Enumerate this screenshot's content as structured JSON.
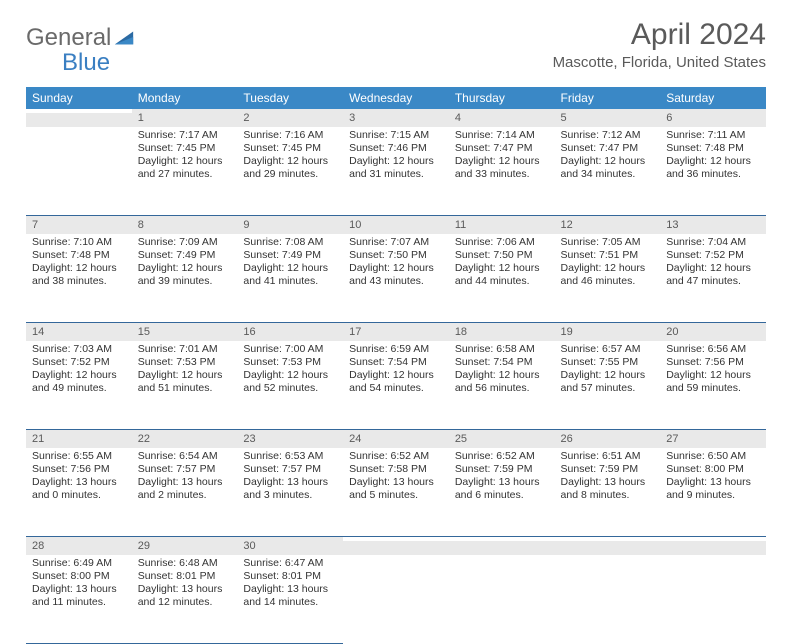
{
  "brand": {
    "part1": "General",
    "part2": "Blue"
  },
  "title": "April 2024",
  "location": "Mascotte, Florida, United States",
  "colors": {
    "header_bg": "#3a88c6",
    "header_text": "#ffffff",
    "row_divider": "#34679a",
    "daynum_bg": "#e9e9e9",
    "page_bg": "#ffffff",
    "text": "#333333",
    "muted_text": "#5a5a5a",
    "logo_blue": "#3a7fc2"
  },
  "weekdays": [
    "Sunday",
    "Monday",
    "Tuesday",
    "Wednesday",
    "Thursday",
    "Friday",
    "Saturday"
  ],
  "weeks": [
    [
      {
        "n": "",
        "sunrise": "",
        "sunset": "",
        "daylight": ""
      },
      {
        "n": "1",
        "sunrise": "Sunrise: 7:17 AM",
        "sunset": "Sunset: 7:45 PM",
        "daylight": "Daylight: 12 hours and 27 minutes."
      },
      {
        "n": "2",
        "sunrise": "Sunrise: 7:16 AM",
        "sunset": "Sunset: 7:45 PM",
        "daylight": "Daylight: 12 hours and 29 minutes."
      },
      {
        "n": "3",
        "sunrise": "Sunrise: 7:15 AM",
        "sunset": "Sunset: 7:46 PM",
        "daylight": "Daylight: 12 hours and 31 minutes."
      },
      {
        "n": "4",
        "sunrise": "Sunrise: 7:14 AM",
        "sunset": "Sunset: 7:47 PM",
        "daylight": "Daylight: 12 hours and 33 minutes."
      },
      {
        "n": "5",
        "sunrise": "Sunrise: 7:12 AM",
        "sunset": "Sunset: 7:47 PM",
        "daylight": "Daylight: 12 hours and 34 minutes."
      },
      {
        "n": "6",
        "sunrise": "Sunrise: 7:11 AM",
        "sunset": "Sunset: 7:48 PM",
        "daylight": "Daylight: 12 hours and 36 minutes."
      }
    ],
    [
      {
        "n": "7",
        "sunrise": "Sunrise: 7:10 AM",
        "sunset": "Sunset: 7:48 PM",
        "daylight": "Daylight: 12 hours and 38 minutes."
      },
      {
        "n": "8",
        "sunrise": "Sunrise: 7:09 AM",
        "sunset": "Sunset: 7:49 PM",
        "daylight": "Daylight: 12 hours and 39 minutes."
      },
      {
        "n": "9",
        "sunrise": "Sunrise: 7:08 AM",
        "sunset": "Sunset: 7:49 PM",
        "daylight": "Daylight: 12 hours and 41 minutes."
      },
      {
        "n": "10",
        "sunrise": "Sunrise: 7:07 AM",
        "sunset": "Sunset: 7:50 PM",
        "daylight": "Daylight: 12 hours and 43 minutes."
      },
      {
        "n": "11",
        "sunrise": "Sunrise: 7:06 AM",
        "sunset": "Sunset: 7:50 PM",
        "daylight": "Daylight: 12 hours and 44 minutes."
      },
      {
        "n": "12",
        "sunrise": "Sunrise: 7:05 AM",
        "sunset": "Sunset: 7:51 PM",
        "daylight": "Daylight: 12 hours and 46 minutes."
      },
      {
        "n": "13",
        "sunrise": "Sunrise: 7:04 AM",
        "sunset": "Sunset: 7:52 PM",
        "daylight": "Daylight: 12 hours and 47 minutes."
      }
    ],
    [
      {
        "n": "14",
        "sunrise": "Sunrise: 7:03 AM",
        "sunset": "Sunset: 7:52 PM",
        "daylight": "Daylight: 12 hours and 49 minutes."
      },
      {
        "n": "15",
        "sunrise": "Sunrise: 7:01 AM",
        "sunset": "Sunset: 7:53 PM",
        "daylight": "Daylight: 12 hours and 51 minutes."
      },
      {
        "n": "16",
        "sunrise": "Sunrise: 7:00 AM",
        "sunset": "Sunset: 7:53 PM",
        "daylight": "Daylight: 12 hours and 52 minutes."
      },
      {
        "n": "17",
        "sunrise": "Sunrise: 6:59 AM",
        "sunset": "Sunset: 7:54 PM",
        "daylight": "Daylight: 12 hours and 54 minutes."
      },
      {
        "n": "18",
        "sunrise": "Sunrise: 6:58 AM",
        "sunset": "Sunset: 7:54 PM",
        "daylight": "Daylight: 12 hours and 56 minutes."
      },
      {
        "n": "19",
        "sunrise": "Sunrise: 6:57 AM",
        "sunset": "Sunset: 7:55 PM",
        "daylight": "Daylight: 12 hours and 57 minutes."
      },
      {
        "n": "20",
        "sunrise": "Sunrise: 6:56 AM",
        "sunset": "Sunset: 7:56 PM",
        "daylight": "Daylight: 12 hours and 59 minutes."
      }
    ],
    [
      {
        "n": "21",
        "sunrise": "Sunrise: 6:55 AM",
        "sunset": "Sunset: 7:56 PM",
        "daylight": "Daylight: 13 hours and 0 minutes."
      },
      {
        "n": "22",
        "sunrise": "Sunrise: 6:54 AM",
        "sunset": "Sunset: 7:57 PM",
        "daylight": "Daylight: 13 hours and 2 minutes."
      },
      {
        "n": "23",
        "sunrise": "Sunrise: 6:53 AM",
        "sunset": "Sunset: 7:57 PM",
        "daylight": "Daylight: 13 hours and 3 minutes."
      },
      {
        "n": "24",
        "sunrise": "Sunrise: 6:52 AM",
        "sunset": "Sunset: 7:58 PM",
        "daylight": "Daylight: 13 hours and 5 minutes."
      },
      {
        "n": "25",
        "sunrise": "Sunrise: 6:52 AM",
        "sunset": "Sunset: 7:59 PM",
        "daylight": "Daylight: 13 hours and 6 minutes."
      },
      {
        "n": "26",
        "sunrise": "Sunrise: 6:51 AM",
        "sunset": "Sunset: 7:59 PM",
        "daylight": "Daylight: 13 hours and 8 minutes."
      },
      {
        "n": "27",
        "sunrise": "Sunrise: 6:50 AM",
        "sunset": "Sunset: 8:00 PM",
        "daylight": "Daylight: 13 hours and 9 minutes."
      }
    ],
    [
      {
        "n": "28",
        "sunrise": "Sunrise: 6:49 AM",
        "sunset": "Sunset: 8:00 PM",
        "daylight": "Daylight: 13 hours and 11 minutes."
      },
      {
        "n": "29",
        "sunrise": "Sunrise: 6:48 AM",
        "sunset": "Sunset: 8:01 PM",
        "daylight": "Daylight: 13 hours and 12 minutes."
      },
      {
        "n": "30",
        "sunrise": "Sunrise: 6:47 AM",
        "sunset": "Sunset: 8:01 PM",
        "daylight": "Daylight: 13 hours and 14 minutes."
      },
      {
        "n": "",
        "sunrise": "",
        "sunset": "",
        "daylight": ""
      },
      {
        "n": "",
        "sunrise": "",
        "sunset": "",
        "daylight": ""
      },
      {
        "n": "",
        "sunrise": "",
        "sunset": "",
        "daylight": ""
      },
      {
        "n": "",
        "sunrise": "",
        "sunset": "",
        "daylight": ""
      }
    ]
  ]
}
